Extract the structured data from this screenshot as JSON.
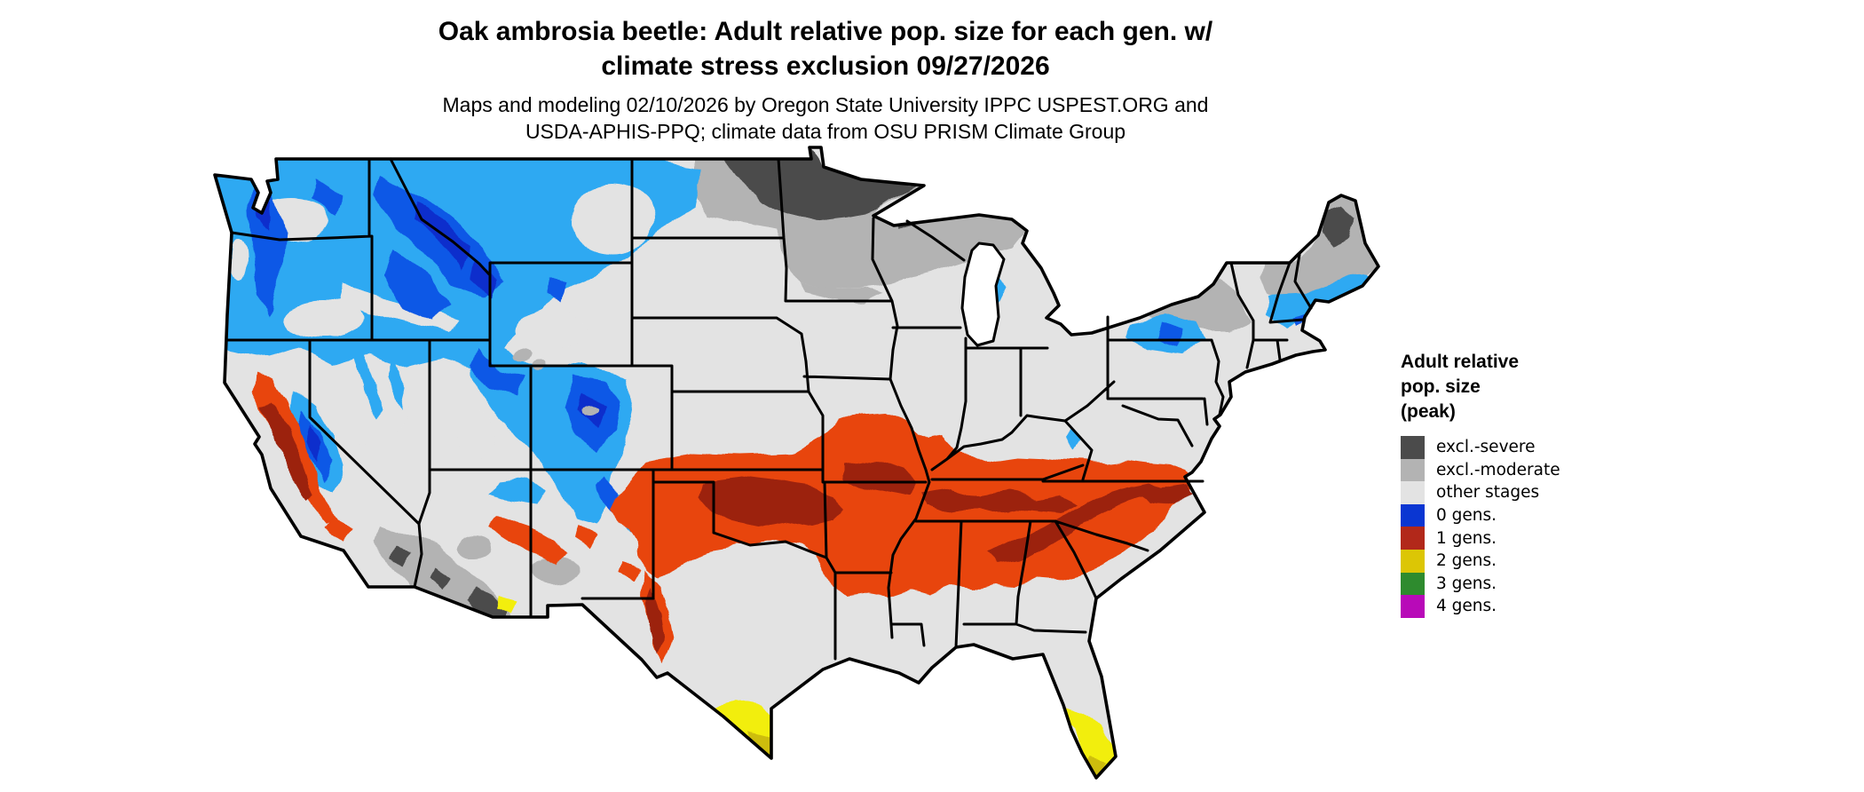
{
  "title": {
    "line1": "Oak ambrosia beetle: Adult relative pop. size for each gen. w/",
    "line2": "climate stress exclusion 09/27/2026"
  },
  "subtitle": {
    "line1": "Maps and modeling 02/10/2026 by Oregon State University IPPC USPEST.ORG and",
    "line2": "USDA-APHIS-PPQ; climate data from OSU PRISM Climate Group"
  },
  "legend": {
    "title_lines": [
      "Adult relative",
      "pop. size",
      "(peak)"
    ],
    "items": [
      {
        "label": "excl.-severe",
        "color": "#4b4b4b"
      },
      {
        "label": "excl.-moderate",
        "color": "#b3b3b3"
      },
      {
        "label": "other stages",
        "color": "#e3e3e3"
      },
      {
        "label": "0 gens.",
        "color": "#0a36d2"
      },
      {
        "label": "1 gens.",
        "color": "#b2281a"
      },
      {
        "label": "2 gens.",
        "color": "#dcc605"
      },
      {
        "label": "3 gens.",
        "color": "#2e8b2e"
      },
      {
        "label": "4 gens.",
        "color": "#b80ab8"
      }
    ]
  },
  "map": {
    "region": "Continental United States",
    "shades": {
      "other": "#e3e3e3",
      "gray_moderate": "#b3b3b3",
      "gray_severe": "#4b4b4b",
      "blue_low": "#2fa9f2",
      "blue_mid": "#1158e6",
      "blue_high": "#0a2ecc",
      "red": "#e8440f",
      "red_dark": "#9c2410",
      "yellow": "#f2ee11",
      "yellow_dark": "#cdbd08"
    }
  }
}
